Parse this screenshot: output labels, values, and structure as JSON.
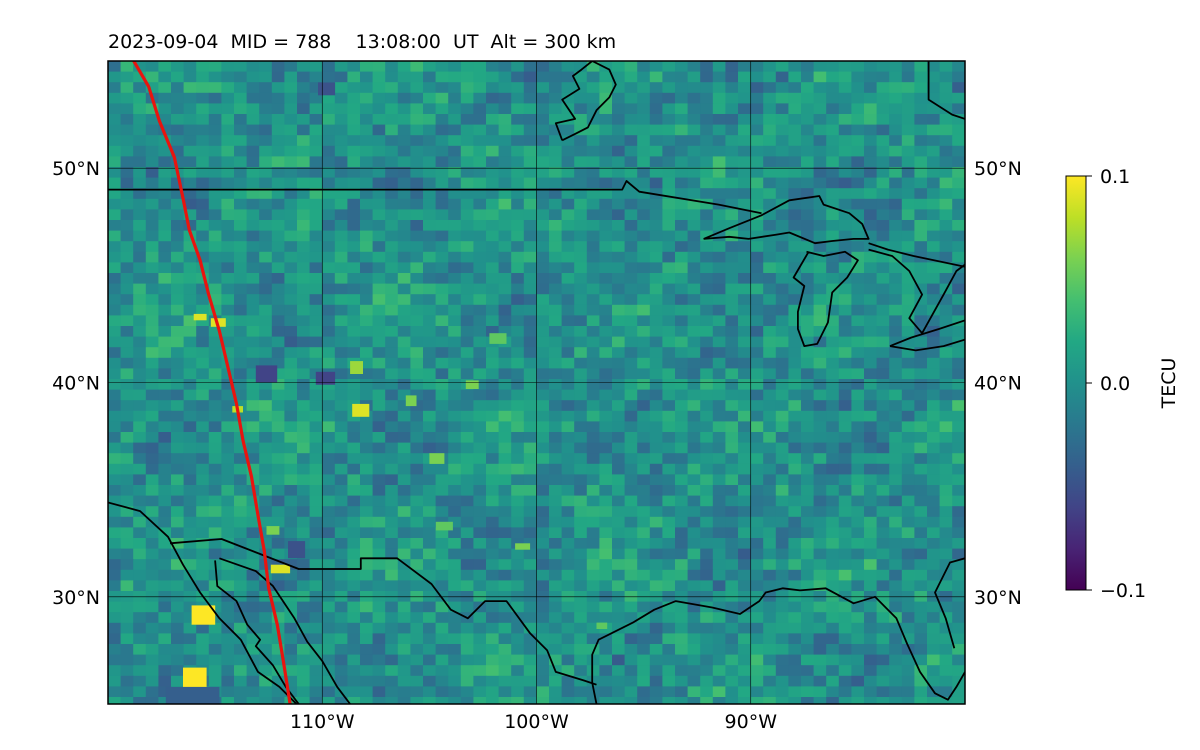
{
  "title": "2023-09-04  MID = 788    13:08:00  UT  Alt = 300 km",
  "map": {
    "lon_range": [
      -120,
      -80
    ],
    "lat_range": [
      25,
      55
    ],
    "gridlines": true,
    "lon_ticks": [
      {
        "value": -110,
        "label": "110°W"
      },
      {
        "value": -100,
        "label": "100°W"
      },
      {
        "value": -90,
        "label": "90°W"
      }
    ],
    "lat_ticks": [
      {
        "value": 50,
        "label": "50°N"
      },
      {
        "value": 40,
        "label": "40°N"
      },
      {
        "value": 30,
        "label": "30°N"
      }
    ]
  },
  "colorbar": {
    "label": "TECU",
    "colormap": "viridis",
    "min": -0.1,
    "max": 0.1,
    "ticks": [
      {
        "value": 0.1,
        "label": "0.1"
      },
      {
        "value": 0.0,
        "label": "0.0"
      },
      {
        "value": -0.1,
        "label": "−0.1"
      }
    ]
  },
  "track": {
    "color": "#e8140f",
    "points": [
      [
        -118.8,
        55
      ],
      [
        -118.1,
        53.8
      ],
      [
        -117.6,
        52.2
      ],
      [
        -116.9,
        50.5
      ],
      [
        -116.5,
        48.6
      ],
      [
        -116.2,
        47.1
      ],
      [
        -115.7,
        45.7
      ],
      [
        -115.3,
        44.1
      ],
      [
        -114.8,
        42.4
      ],
      [
        -114.4,
        40.7
      ],
      [
        -114.0,
        39.0
      ],
      [
        -113.7,
        37.3
      ],
      [
        -113.3,
        35.6
      ],
      [
        -113.0,
        33.8
      ],
      [
        -112.7,
        32.1
      ],
      [
        -112.5,
        30.4
      ],
      [
        -112.1,
        28.7
      ],
      [
        -111.8,
        26.9
      ],
      [
        -111.5,
        25.0
      ]
    ]
  },
  "anomalies": [
    {
      "lon": -116.1,
      "lat": 28.7,
      "w": 1.1,
      "h": 0.9,
      "v": 0.1
    },
    {
      "lon": -116.5,
      "lat": 25.6,
      "w": 1.1,
      "h": 1.1,
      "v": 0.1
    },
    {
      "lon": -115.2,
      "lat": 42.6,
      "w": 0.7,
      "h": 0.4,
      "v": 0.09
    },
    {
      "lon": -116.0,
      "lat": 42.9,
      "w": 0.6,
      "h": 0.3,
      "v": 0.09
    },
    {
      "lon": -114.2,
      "lat": 38.6,
      "w": 0.5,
      "h": 0.3,
      "v": 0.08
    },
    {
      "lon": -112.4,
      "lat": 31.1,
      "w": 0.9,
      "h": 0.4,
      "v": 0.09
    },
    {
      "lon": -108.6,
      "lat": 38.4,
      "w": 0.8,
      "h": 0.6,
      "v": 0.09
    },
    {
      "lon": -108.7,
      "lat": 40.4,
      "w": 0.6,
      "h": 0.6,
      "v": 0.07
    },
    {
      "lon": -106.1,
      "lat": 38.9,
      "w": 0.5,
      "h": 0.5,
      "v": 0.06
    },
    {
      "lon": -103.3,
      "lat": 39.7,
      "w": 0.6,
      "h": 0.4,
      "v": 0.06
    },
    {
      "lon": -105.0,
      "lat": 36.2,
      "w": 0.7,
      "h": 0.5,
      "v": 0.06
    },
    {
      "lon": -104.7,
      "lat": 33.1,
      "w": 0.8,
      "h": 0.4,
      "v": 0.05
    },
    {
      "lon": -101.0,
      "lat": 32.2,
      "w": 0.7,
      "h": 0.3,
      "v": 0.06
    },
    {
      "lon": -102.2,
      "lat": 41.8,
      "w": 0.8,
      "h": 0.5,
      "v": 0.05
    },
    {
      "lon": -97.2,
      "lat": 28.5,
      "w": 0.5,
      "h": 0.3,
      "v": 0.05
    },
    {
      "lon": -112.6,
      "lat": 32.9,
      "w": 0.6,
      "h": 0.4,
      "v": 0.06
    },
    {
      "lon": -113.1,
      "lat": 40.0,
      "w": 1.0,
      "h": 0.8,
      "v": -0.06
    },
    {
      "lon": -110.3,
      "lat": 39.9,
      "w": 0.9,
      "h": 0.6,
      "v": -0.06
    },
    {
      "lon": -110.2,
      "lat": 53.4,
      "w": 0.8,
      "h": 0.6,
      "v": -0.05
    },
    {
      "lon": -117.3,
      "lat": 24.8,
      "w": 2.5,
      "h": 1.0,
      "v": -0.04
    },
    {
      "lon": -111.6,
      "lat": 31.8,
      "w": 0.8,
      "h": 0.8,
      "v": -0.05
    }
  ],
  "outlines": [
    {
      "name": "us-canada-border",
      "points": [
        [
          -120,
          49
        ],
        [
          -96,
          49
        ],
        [
          -95.8,
          49.4
        ],
        [
          -95.2,
          48.9
        ],
        [
          -91.5,
          48.3
        ],
        [
          -89.5,
          47.9
        ]
      ]
    },
    {
      "name": "lake-superior",
      "points": [
        [
          -92.2,
          46.7
        ],
        [
          -91,
          47.2
        ],
        [
          -89.5,
          47.8
        ],
        [
          -88.2,
          48.5
        ],
        [
          -86.8,
          48.7
        ],
        [
          -86.6,
          48.3
        ],
        [
          -85.4,
          47.9
        ],
        [
          -84.8,
          47.4
        ],
        [
          -84.5,
          46.7
        ],
        [
          -85.2,
          46.7
        ],
        [
          -86.2,
          46.6
        ],
        [
          -87.0,
          46.5
        ],
        [
          -88.2,
          47.0
        ],
        [
          -88.8,
          46.9
        ],
        [
          -90.1,
          46.7
        ],
        [
          -91.0,
          46.8
        ],
        [
          -92.2,
          46.7
        ]
      ]
    },
    {
      "name": "canada-border-east",
      "points": [
        [
          -84.5,
          46.5
        ],
        [
          -83.6,
          46.2
        ],
        [
          -82.4,
          45.9
        ],
        [
          -80,
          45.4
        ]
      ]
    },
    {
      "name": "lake-michigan",
      "points": [
        [
          -87.4,
          46.1
        ],
        [
          -86.6,
          45.9
        ],
        [
          -85.6,
          46.1
        ],
        [
          -85.0,
          45.7
        ],
        [
          -85.5,
          44.9
        ],
        [
          -86.2,
          44.2
        ],
        [
          -86.4,
          42.8
        ],
        [
          -86.9,
          41.8
        ],
        [
          -87.5,
          41.7
        ],
        [
          -87.8,
          42.5
        ],
        [
          -87.8,
          43.3
        ],
        [
          -87.5,
          44.5
        ],
        [
          -88.0,
          44.9
        ],
        [
          -87.3,
          46.1
        ]
      ]
    },
    {
      "name": "lake-huron",
      "points": [
        [
          -84.5,
          46.2
        ],
        [
          -83.4,
          45.9
        ],
        [
          -82.6,
          45.2
        ],
        [
          -82.0,
          44.1
        ],
        [
          -82.6,
          43.0
        ],
        [
          -82.0,
          42.3
        ],
        [
          -81.0,
          44.1
        ],
        [
          -80.4,
          45.2
        ],
        [
          -80,
          45.5
        ]
      ]
    },
    {
      "name": "lake-erie",
      "points": [
        [
          -83.5,
          41.7
        ],
        [
          -82.5,
          42.1
        ],
        [
          -81.2,
          42.5
        ],
        [
          -80,
          42.9
        ]
      ]
    },
    {
      "name": "lake-erie-south",
      "points": [
        [
          -83.5,
          41.7
        ],
        [
          -82.3,
          41.5
        ],
        [
          -81.0,
          41.7
        ],
        [
          -80,
          42.0
        ]
      ]
    },
    {
      "name": "lake-winnipeg",
      "points": [
        [
          -98.8,
          51.3
        ],
        [
          -98.2,
          51.6
        ],
        [
          -97.6,
          51.9
        ],
        [
          -97.2,
          52.7
        ],
        [
          -96.6,
          53.3
        ],
        [
          -96.3,
          53.9
        ],
        [
          -96.6,
          54.6
        ],
        [
          -97.4,
          55.0
        ],
        [
          -97.9,
          54.6
        ],
        [
          -98.3,
          54.3
        ],
        [
          -98.0,
          53.7
        ],
        [
          -98.8,
          53.2
        ],
        [
          -98.2,
          52.3
        ],
        [
          -99.1,
          52.1
        ],
        [
          -98.8,
          51.3
        ]
      ]
    },
    {
      "name": "hudson-bay-edge",
      "points": [
        [
          -81.7,
          55
        ],
        [
          -81.7,
          53.2
        ],
        [
          -80.6,
          52.5
        ],
        [
          -80,
          52.3
        ]
      ]
    },
    {
      "name": "pacific-coast",
      "points": [
        [
          -120,
          34.4
        ],
        [
          -118.5,
          34.0
        ],
        [
          -117.2,
          32.8
        ],
        [
          -116.5,
          31.5
        ],
        [
          -115.7,
          30.2
        ],
        [
          -114.8,
          29.0
        ],
        [
          -113.8,
          28.0
        ],
        [
          -113.0,
          26.5
        ],
        [
          -112.0,
          25.8
        ],
        [
          -111.2,
          25.0
        ]
      ]
    },
    {
      "name": "gulf-of-california-west",
      "points": [
        [
          -115.0,
          31.7
        ],
        [
          -114.9,
          30.5
        ],
        [
          -114.0,
          29.8
        ],
        [
          -113.5,
          28.7
        ],
        [
          -112.9,
          28.0
        ],
        [
          -113.1,
          27.7
        ],
        [
          -112.3,
          26.8
        ],
        [
          -111.7,
          25.8
        ],
        [
          -111.1,
          25.0
        ]
      ]
    },
    {
      "name": "gulf-of-california-east",
      "points": [
        [
          -114.8,
          31.8
        ],
        [
          -113.1,
          31.2
        ],
        [
          -112.3,
          30.5
        ],
        [
          -111.3,
          29.0
        ],
        [
          -110.7,
          27.9
        ],
        [
          -110.0,
          27.0
        ],
        [
          -109.3,
          25.8
        ],
        [
          -108.7,
          25.0
        ]
      ]
    },
    {
      "name": "us-mexico-border",
      "points": [
        [
          -117.1,
          32.5
        ],
        [
          -114.7,
          32.7
        ],
        [
          -111.1,
          31.3
        ],
        [
          -108.2,
          31.3
        ],
        [
          -108.2,
          31.8
        ],
        [
          -106.5,
          31.8
        ],
        [
          -104.9,
          30.6
        ],
        [
          -104.0,
          29.4
        ],
        [
          -103.2,
          29.0
        ],
        [
          -102.4,
          29.8
        ],
        [
          -101.4,
          29.8
        ],
        [
          -100.3,
          28.3
        ],
        [
          -99.5,
          27.5
        ],
        [
          -99.1,
          26.5
        ],
        [
          -97.8,
          26.1
        ],
        [
          -97.2,
          25.9
        ]
      ]
    },
    {
      "name": "gulf-coast",
      "points": [
        [
          -97.2,
          25.0
        ],
        [
          -97.4,
          26.0
        ],
        [
          -97.4,
          27.3
        ],
        [
          -97.1,
          28.0
        ],
        [
          -95.5,
          28.8
        ],
        [
          -94.5,
          29.4
        ],
        [
          -93.5,
          29.8
        ],
        [
          -91.8,
          29.5
        ],
        [
          -90.5,
          29.2
        ],
        [
          -89.6,
          29.8
        ],
        [
          -89.3,
          30.2
        ],
        [
          -88.5,
          30.4
        ],
        [
          -87.7,
          30.3
        ],
        [
          -86.5,
          30.4
        ],
        [
          -85.2,
          29.7
        ],
        [
          -84.2,
          30.0
        ],
        [
          -83.2,
          29.0
        ],
        [
          -82.7,
          27.8
        ],
        [
          -82.1,
          26.5
        ],
        [
          -81.4,
          25.5
        ],
        [
          -80.8,
          25.2
        ],
        [
          -80.4,
          25.8
        ],
        [
          -80.0,
          26.5
        ]
      ]
    },
    {
      "name": "atlantic-coast",
      "points": [
        [
          -80.0,
          31.8
        ],
        [
          -80.7,
          31.6
        ],
        [
          -81.4,
          30.2
        ],
        [
          -80.9,
          29.0
        ],
        [
          -80.5,
          27.6
        ]
      ]
    }
  ]
}
